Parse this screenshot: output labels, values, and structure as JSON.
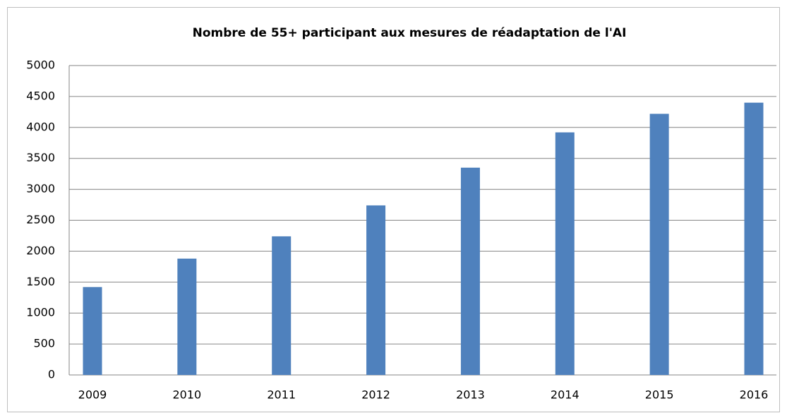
{
  "chart_data": {
    "type": "bar",
    "title": "Nombre de 55+ participant aux mesures de réadaptation de l'AI",
    "categories": [
      "2009",
      "2010",
      "2011",
      "2012",
      "2013",
      "2014",
      "2015",
      "2016"
    ],
    "values": [
      1420,
      1880,
      2240,
      2740,
      3350,
      3920,
      4220,
      4400
    ],
    "color": "#4f81bd",
    "ylim": [
      0,
      5000
    ],
    "yticks": [
      0,
      500,
      1000,
      1500,
      2000,
      2500,
      3000,
      3500,
      4000,
      4500,
      5000
    ],
    "grid": true
  }
}
